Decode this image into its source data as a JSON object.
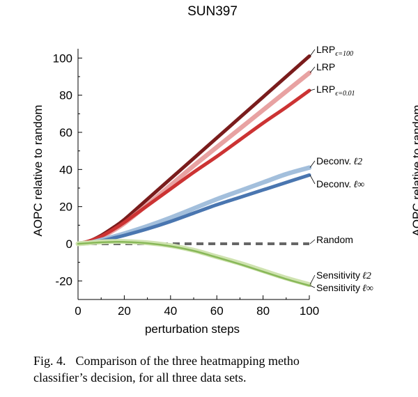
{
  "chart_data": {
    "type": "line",
    "title": "SUN397",
    "xlabel": "perturbation steps",
    "ylabel": "AOPC relative to random",
    "xlim": [
      0,
      100
    ],
    "ylim": [
      -30,
      105
    ],
    "xticks": [
      0,
      20,
      40,
      60,
      80,
      100
    ],
    "yticks": [
      -20,
      0,
      20,
      40,
      60,
      80,
      100
    ],
    "grid": false,
    "cut_off_right_ylabel": "AOPC relative to random",
    "series": [
      {
        "name": "LRP",
        "label_sub": "ϵ=100",
        "color": "#7a1c1c",
        "x": [
          0,
          5,
          10,
          15,
          20,
          30,
          40,
          50,
          60,
          70,
          80,
          90,
          100
        ],
        "y": [
          0,
          1.5,
          4.5,
          8.5,
          13,
          24,
          35,
          46,
          57,
          68,
          79,
          90,
          101
        ]
      },
      {
        "name": "LRP",
        "label_sub": "",
        "color": "#e8a2a2",
        "x": [
          0,
          5,
          10,
          15,
          20,
          30,
          40,
          50,
          60,
          70,
          80,
          90,
          100
        ],
        "y": [
          0,
          1,
          3.5,
          7,
          11,
          21,
          31.5,
          42,
          52,
          62,
          72,
          82,
          92
        ]
      },
      {
        "name": "LRP",
        "label_sub": "ϵ=0.01",
        "color": "#cc3333",
        "x": [
          0,
          5,
          10,
          15,
          20,
          30,
          40,
          50,
          60,
          70,
          80,
          90,
          100
        ],
        "y": [
          0,
          1.5,
          4,
          7.5,
          11.5,
          20.5,
          29.5,
          38.5,
          47,
          56,
          65,
          73.5,
          82.5
        ]
      },
      {
        "name": "Deconv.",
        "label_math": "ℓ2",
        "color": "#a3bfdc",
        "x": [
          0,
          5,
          10,
          15,
          20,
          30,
          40,
          50,
          60,
          70,
          80,
          90,
          100
        ],
        "y": [
          0,
          0.5,
          2,
          3.7,
          5.5,
          9.5,
          14,
          19,
          24,
          28.5,
          33,
          37.5,
          41
        ]
      },
      {
        "name": "Deconv.",
        "label_math": "ℓ∞",
        "color": "#4a76b0",
        "x": [
          0,
          5,
          10,
          15,
          20,
          30,
          40,
          50,
          60,
          70,
          80,
          90,
          100
        ],
        "y": [
          0,
          0.4,
          1.5,
          3,
          4.5,
          8,
          12,
          16.5,
          21,
          25,
          29,
          33,
          37
        ]
      },
      {
        "name": "Random",
        "label_math": "",
        "color": "#666666",
        "dashed": true,
        "x": [
          0,
          100
        ],
        "y": [
          0,
          0
        ]
      },
      {
        "name": "Sensitivity",
        "label_math": "ℓ2",
        "color": "#cfe3b0",
        "x": [
          0,
          5,
          10,
          15,
          20,
          30,
          40,
          50,
          60,
          70,
          80,
          90,
          100
        ],
        "y": [
          0,
          0.5,
          1,
          1.2,
          1.2,
          0.5,
          -1,
          -3.5,
          -7,
          -10.5,
          -14.5,
          -18.5,
          -22
        ]
      },
      {
        "name": "Sensitivity",
        "label_math": "ℓ∞",
        "color": "#88b858",
        "x": [
          0,
          5,
          10,
          15,
          20,
          30,
          40,
          50,
          60,
          70,
          80,
          90,
          100
        ],
        "y": [
          0,
          0.4,
          0.8,
          1,
          1,
          0.3,
          -1.3,
          -3.8,
          -7.3,
          -11,
          -15,
          -19,
          -22.5
        ]
      }
    ]
  },
  "caption": {
    "figure_number": "Fig. 4.",
    "line1": "Comparison of the three heatmapping metho",
    "line2": "classifier’s decision, for all three data sets."
  }
}
